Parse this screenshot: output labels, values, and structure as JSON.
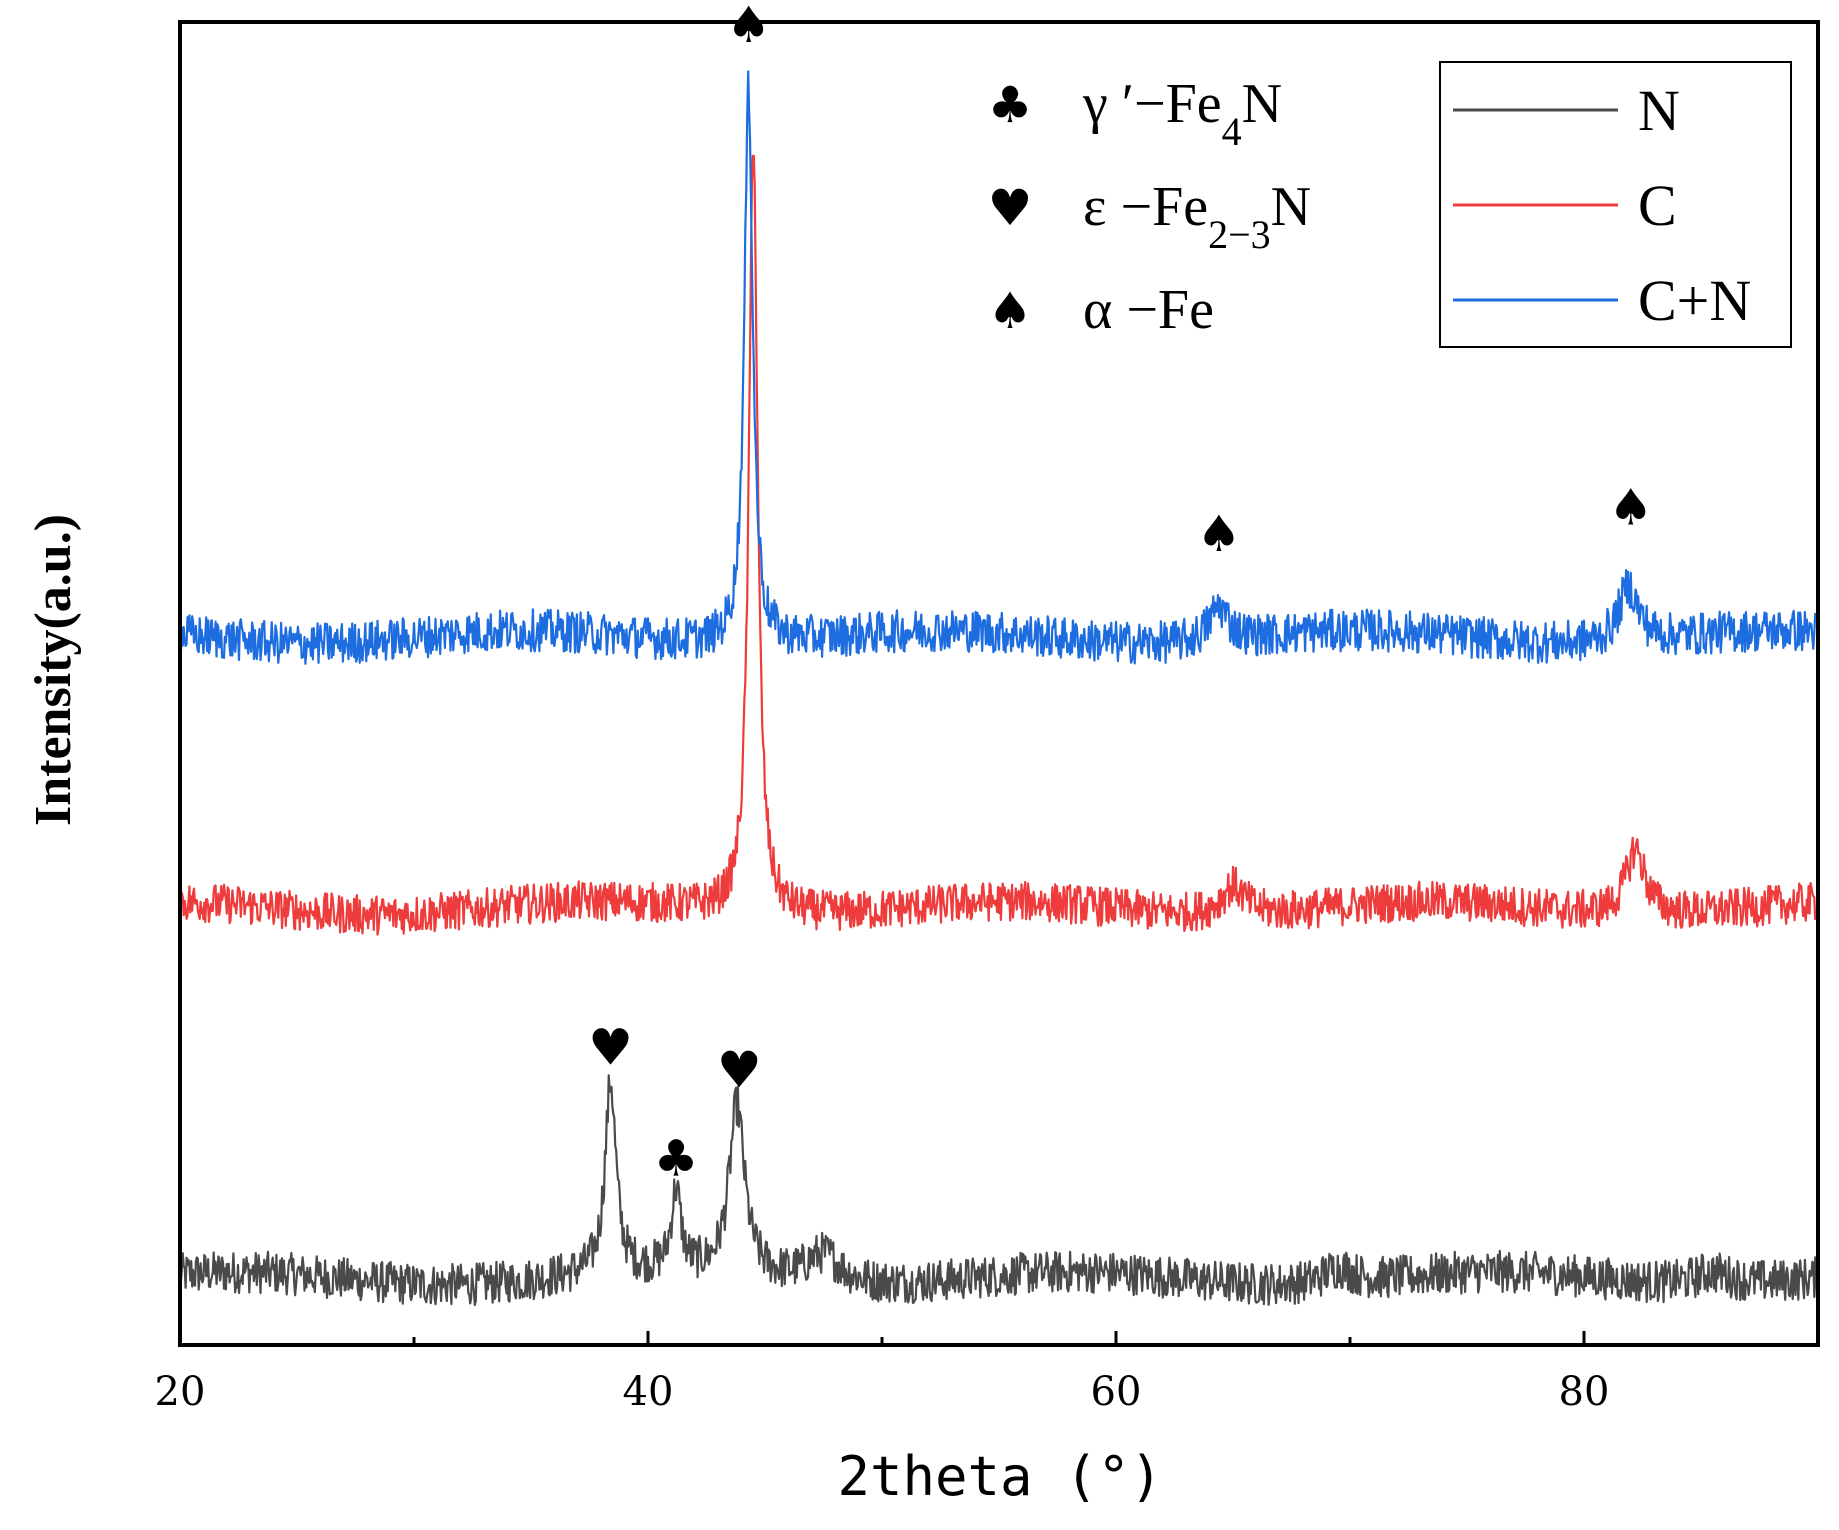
{
  "chart_data": {
    "type": "line",
    "title": "",
    "xlabel": "2theta (°)",
    "ylabel": "Intensity(a.u.)",
    "xlim": [
      20,
      90
    ],
    "ylim": [
      0,
      100
    ],
    "x_ticks": [
      20,
      40,
      60,
      80
    ],
    "x_minor_ticks": [
      30,
      50,
      70
    ],
    "grid": false,
    "legend_position": "top-right",
    "series": [
      {
        "name": "N",
        "color": "#4a4a4a",
        "baseline": 5.0,
        "noise": 1.6,
        "peaks": [
          {
            "x": 38.4,
            "height": 14.5,
            "width": 0.28
          },
          {
            "x": 41.2,
            "height": 6.0,
            "width": 0.25
          },
          {
            "x": 43.8,
            "height": 12.8,
            "width": 0.4
          },
          {
            "x": 47.5,
            "height": 2.2,
            "width": 0.9
          },
          {
            "x": 69.5,
            "height": 1.2,
            "width": 0.8
          },
          {
            "x": 85.5,
            "height": 1.0,
            "width": 1.0
          }
        ]
      },
      {
        "name": "C",
        "color": "#ee3b3b",
        "baseline": 33.0,
        "noise": 1.5,
        "peaks": [
          {
            "x": 44.5,
            "height": 59.0,
            "width": 0.22
          },
          {
            "x": 65.0,
            "height": 2.2,
            "width": 0.6
          },
          {
            "x": 82.2,
            "height": 5.0,
            "width": 0.5
          }
        ]
      },
      {
        "name": "C+N",
        "color": "#1e6de0",
        "baseline": 53.5,
        "noise": 1.6,
        "peaks": [
          {
            "x": 44.3,
            "height": 42.0,
            "width": 0.22
          },
          {
            "x": 64.4,
            "height": 2.6,
            "width": 0.5
          },
          {
            "x": 81.9,
            "height": 4.2,
            "width": 0.5
          }
        ]
      }
    ],
    "phase_legend": [
      {
        "symbol": "♣",
        "name": "club-icon",
        "label": "γ ′−Fe",
        "sub": "4",
        "tail": "N"
      },
      {
        "symbol": "♥",
        "name": "heart-icon",
        "label": "ε −Fe",
        "sub": "2−3",
        "tail": "N"
      },
      {
        "symbol": "♠",
        "name": "spade-icon",
        "label": "α −Fe",
        "sub": "",
        "tail": ""
      }
    ],
    "peak_markers": [
      {
        "symbol": "♠",
        "name": "spade-icon",
        "x": 44.3,
        "y": 98.5
      },
      {
        "symbol": "♠",
        "name": "spade-icon",
        "x": 64.4,
        "y": 60.0
      },
      {
        "symbol": "♠",
        "name": "spade-icon",
        "x": 82.0,
        "y": 62.0
      },
      {
        "symbol": "♥",
        "name": "heart-icon",
        "x": 38.4,
        "y": 21.2
      },
      {
        "symbol": "♣",
        "name": "club-icon",
        "x": 41.2,
        "y": 12.8
      },
      {
        "symbol": "♥",
        "name": "heart-icon",
        "x": 43.9,
        "y": 19.5
      }
    ]
  }
}
